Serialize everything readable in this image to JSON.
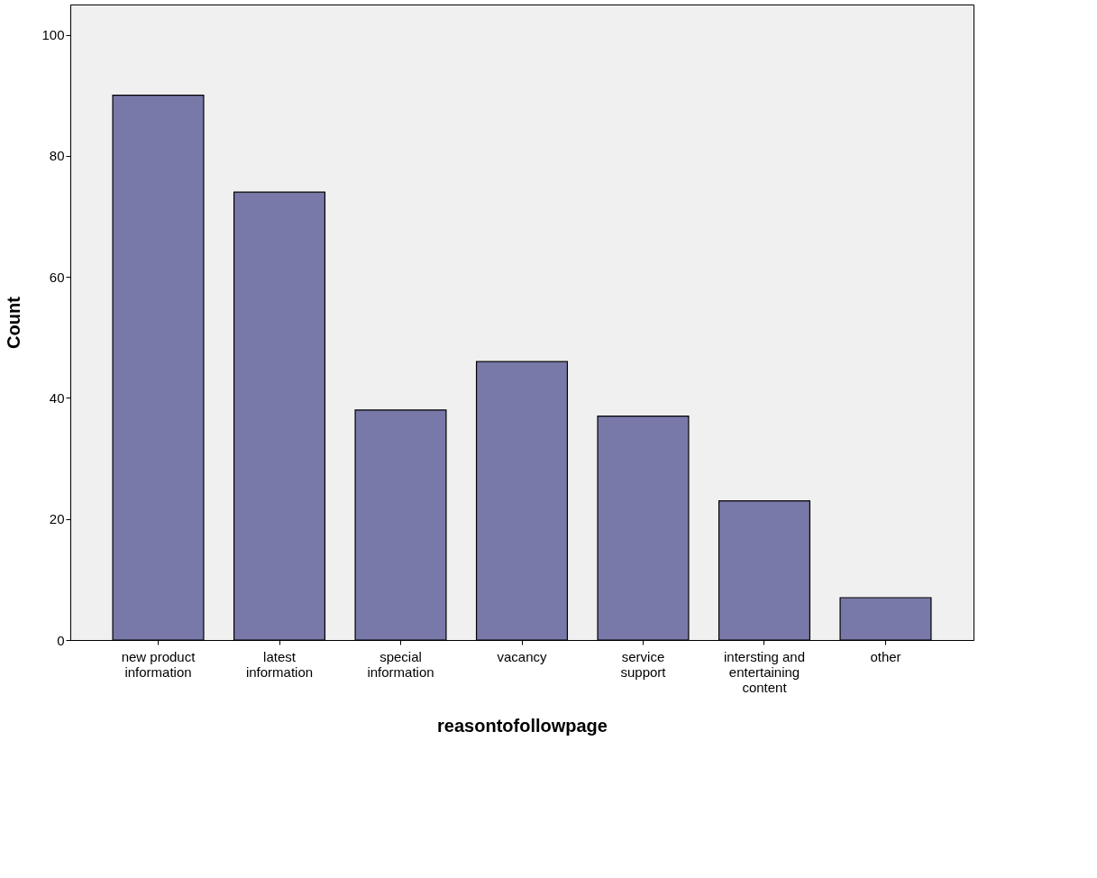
{
  "chart_data": {
    "type": "bar",
    "xlabel": "reasontofollowpage",
    "ylabel": "Count",
    "categories": [
      "new product information",
      "latest information",
      "special information",
      "vacancy",
      "service support",
      "intersting and entertaining content",
      "other"
    ],
    "values": [
      90,
      74,
      38,
      46,
      37,
      23,
      7
    ],
    "color": "#7879a8",
    "ylim": [
      0,
      105
    ],
    "yticks": [
      0,
      20,
      40,
      60,
      80,
      100
    ],
    "grid": false
  }
}
